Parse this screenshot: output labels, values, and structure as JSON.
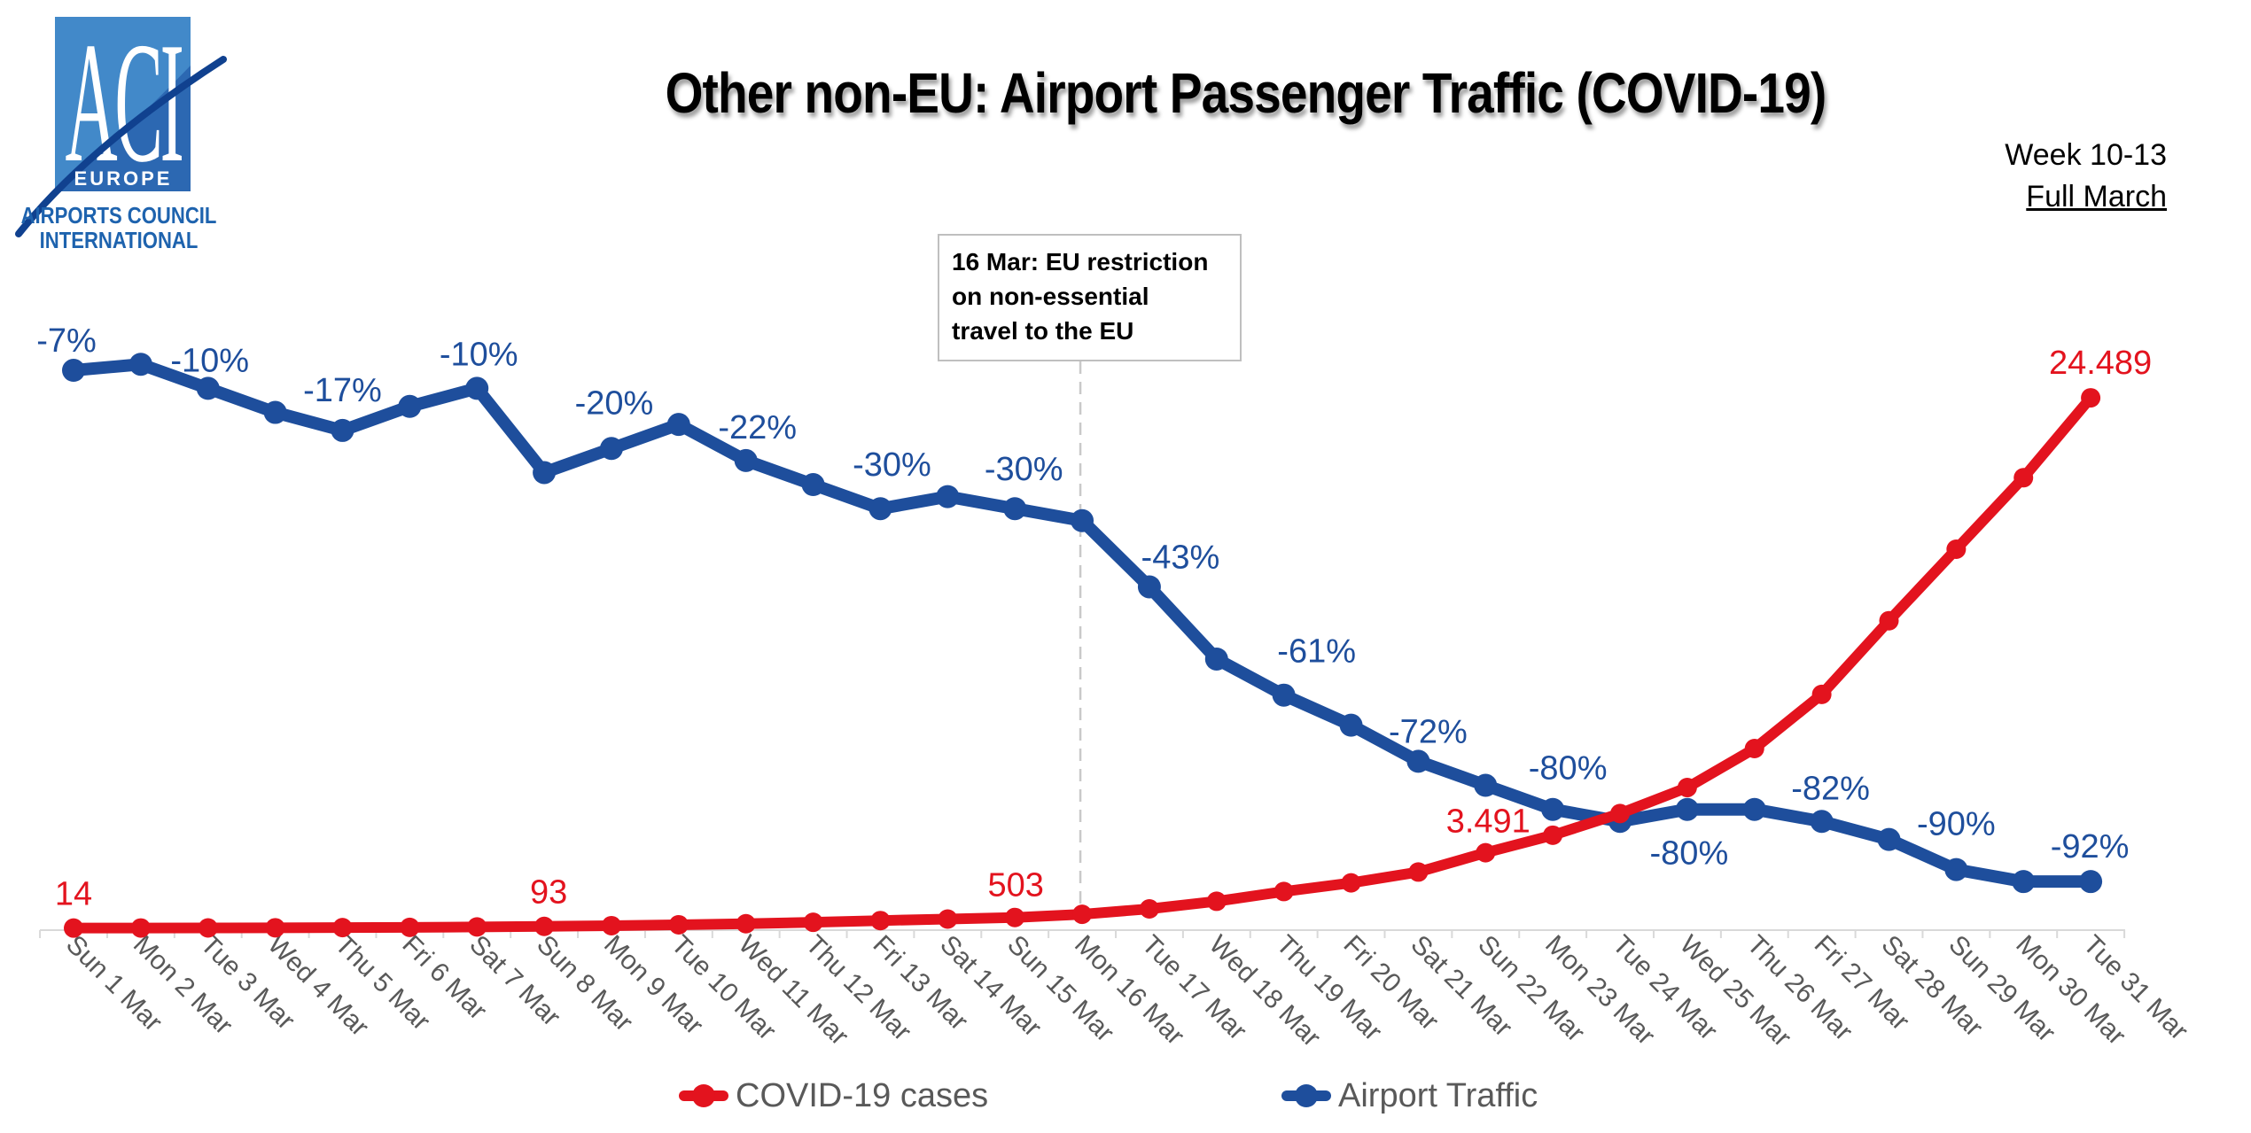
{
  "header": {
    "week_line1": "Week 10-13",
    "week_line2": "Full March"
  },
  "logo": {
    "acronym": "ACI",
    "region": "EUROPE",
    "name_line1": "AIRPORTS COUNCIL",
    "name_line2": "INTERNATIONAL"
  },
  "chart_data": {
    "type": "line",
    "title": "Other non-EU: Airport Passenger Traffic (COVID-19)",
    "annotation": {
      "text": "16 Mar: EU restriction\non non-essential\ntravel to the EU",
      "attached_category_index": 15
    },
    "legend_position": "bottom",
    "grid": false,
    "x_axis": {
      "tick_color": "#d9d9d9",
      "label_color": "#595959"
    },
    "categories": [
      "Sun 1 Mar",
      "Mon 2 Mar",
      "Tue 3 Mar",
      "Wed 4 Mar",
      "Thu 5 Mar",
      "Fri 6 Mar",
      "Sat 7 Mar",
      "Sun 8 Mar",
      "Mon 9 Mar",
      "Tue 10 Mar",
      "Wed 11 Mar",
      "Thu 12 Mar",
      "Fri 13 Mar",
      "Sat 14 Mar",
      "Sun 15 Mar",
      "Mon 16 Mar",
      "Tue 17 Mar",
      "Wed 18 Mar",
      "Thu 19 Mar",
      "Fri 20 Mar",
      "Sat 21 Mar",
      "Sun 22 Mar",
      "Mon 23 Mar",
      "Tue 24 Mar",
      "Wed 25 Mar",
      "Thu 26 Mar",
      "Fri 27 Mar",
      "Sat 28 Mar",
      "Sun 29 Mar",
      "Mon 30 Mar",
      "Tue 31 Mar"
    ],
    "series": [
      {
        "name": "COVID-19 cases",
        "color": "#e3131e",
        "axis": "cases",
        "values": [
          14,
          17,
          21,
          27,
          35,
          46,
          66,
          93,
          125,
          165,
          215,
          280,
          360,
          430,
          503,
          650,
          900,
          1250,
          1700,
          2100,
          2600,
          3491,
          4300,
          5300,
          6500,
          8300,
          10800,
          14200,
          17500,
          20800,
          24489
        ],
        "labels": [
          {
            "i": 0,
            "text": "14",
            "dx": 0,
            "dy": -38
          },
          {
            "i": 7,
            "text": "93",
            "dx": 5,
            "dy": -38
          },
          {
            "i": 14,
            "text": "503",
            "dx": 1,
            "dy": -36
          },
          {
            "i": 21,
            "text": "3.491",
            "dx": 3,
            "dy": -35
          },
          {
            "i": 30,
            "text": "24.489",
            "dx": 11,
            "dy": -39
          }
        ]
      },
      {
        "name": "Airport Traffic",
        "color": "#1e4e9c",
        "axis": "percent_vs_previous_year",
        "values": [
          -7,
          -6,
          -10,
          -14,
          -17,
          -13,
          -10,
          -24,
          -20,
          -16,
          -22,
          -26,
          -30,
          -28,
          -30,
          -32,
          -43,
          -55,
          -61,
          -66,
          -72,
          -76,
          -80,
          -82,
          -80,
          -80,
          -82,
          -85,
          -90,
          -92,
          -92
        ],
        "labels": [
          {
            "i": 0,
            "text": "-7%",
            "dx": -8,
            "dy": -33
          },
          {
            "i": 2,
            "text": "-10%",
            "dx": 2,
            "dy": -31
          },
          {
            "i": 4,
            "text": "-17%",
            "dx": 0,
            "dy": -45
          },
          {
            "i": 6,
            "text": "-10%",
            "dx": 2,
            "dy": -38
          },
          {
            "i": 8,
            "text": "-20%",
            "dx": 3,
            "dy": -51
          },
          {
            "i": 10,
            "text": "-22%",
            "dx": 13,
            "dy": -37
          },
          {
            "i": 12,
            "text": "-30%",
            "dx": 13,
            "dy": -49
          },
          {
            "i": 14,
            "text": "-30%",
            "dx": 10,
            "dy": -44
          },
          {
            "i": 16,
            "text": "-43%",
            "dx": 35,
            "dy": -33
          },
          {
            "i": 18,
            "text": "-61%",
            "dx": 37,
            "dy": -49
          },
          {
            "i": 20,
            "text": "-72%",
            "dx": 11,
            "dy": -33
          },
          {
            "i": 22,
            "text": "-80%",
            "dx": 17,
            "dy": -46
          },
          {
            "i": 24,
            "text": "-80%",
            "dx": 2,
            "dy": 50
          },
          {
            "i": 26,
            "text": "-82%",
            "dx": 10,
            "dy": -37
          },
          {
            "i": 28,
            "text": "-90%",
            "dx": 0,
            "dy": -51
          },
          {
            "i": 30,
            "text": "-92%",
            "dx": -1,
            "dy": -39
          }
        ]
      }
    ]
  }
}
